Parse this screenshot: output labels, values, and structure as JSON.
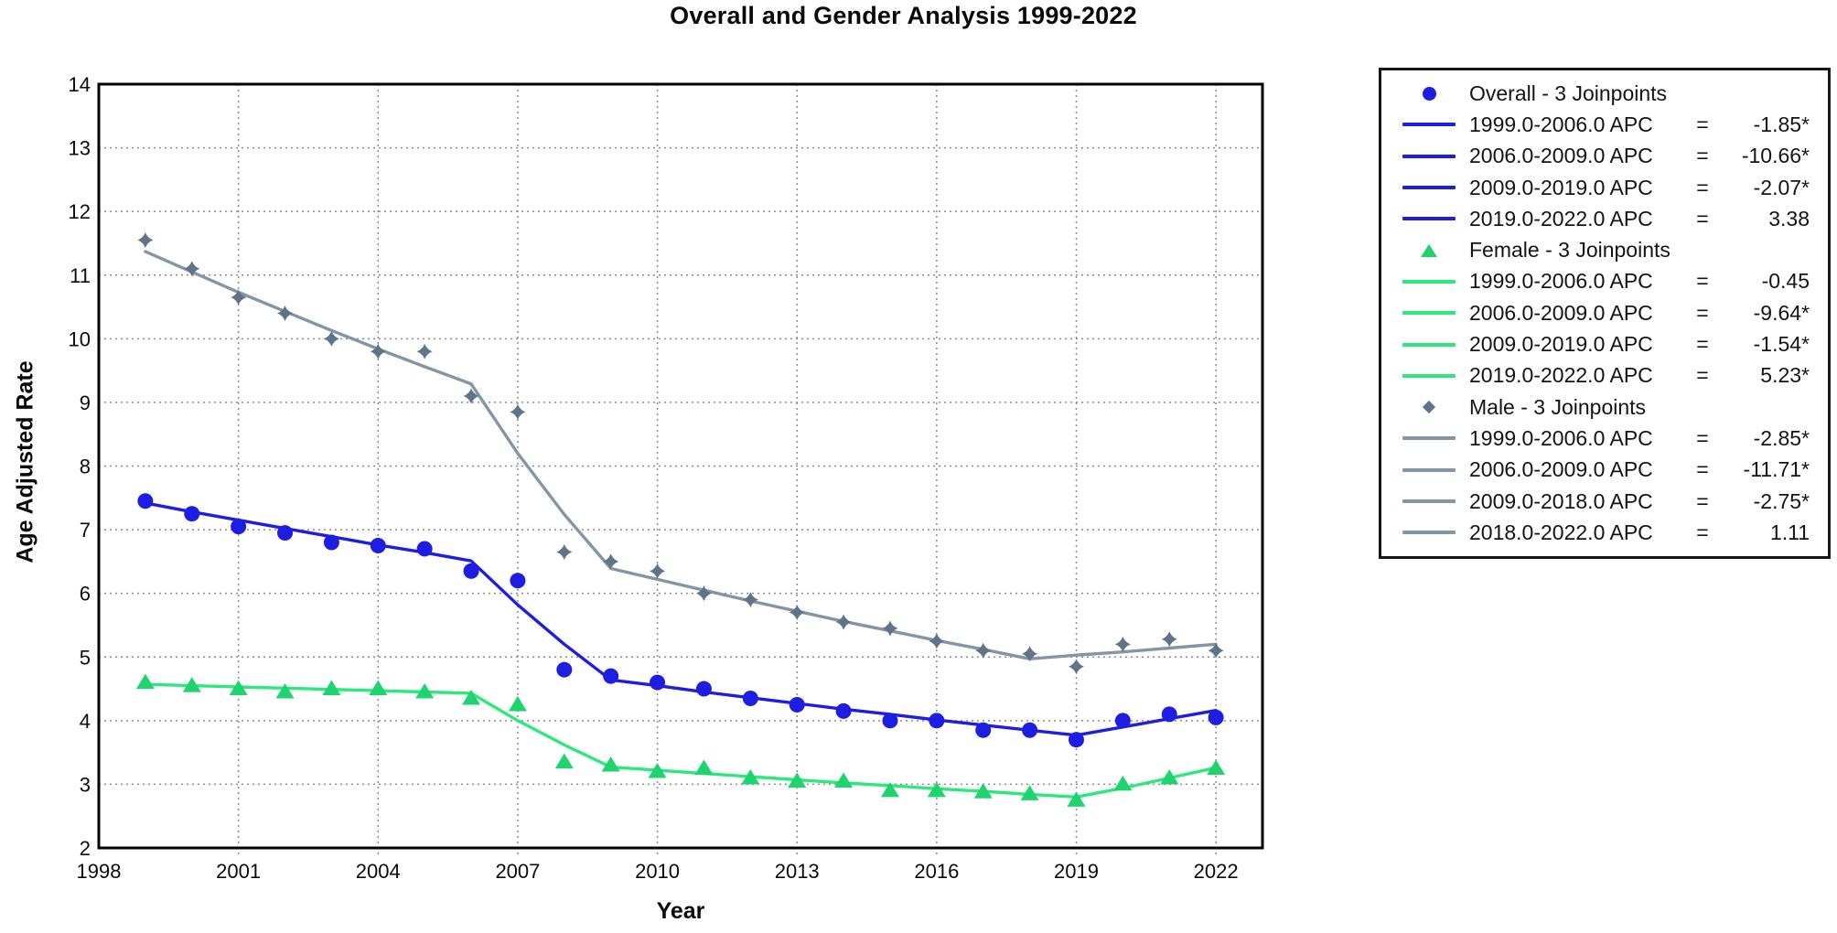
{
  "title": "Overall and Gender Analysis 1999-2022",
  "equals_sign": "=",
  "chart_data": {
    "type": "line",
    "title": "Overall and Gender Analysis 1999-2022",
    "xlabel": "Year",
    "ylabel": "Age Adjusted Rate",
    "xlim": [
      1998,
      2023
    ],
    "ylim": [
      2,
      14
    ],
    "x_ticks": [
      1998,
      2001,
      2004,
      2007,
      2010,
      2013,
      2016,
      2019,
      2022
    ],
    "y_ticks": [
      2,
      3,
      4,
      5,
      6,
      7,
      8,
      9,
      10,
      11,
      12,
      13,
      14
    ],
    "grid": true,
    "legend_position": "right",
    "years": [
      1999,
      2000,
      2001,
      2002,
      2003,
      2004,
      2005,
      2006,
      2007,
      2008,
      2009,
      2010,
      2011,
      2012,
      2013,
      2014,
      2015,
      2016,
      2017,
      2018,
      2019,
      2020,
      2021,
      2022
    ],
    "series": [
      {
        "name": "Overall - 3 Joinpoints",
        "marker": "circle",
        "color": "#1e1ee2",
        "line_color": "#1e1ee2",
        "observed": [
          7.45,
          7.25,
          7.05,
          6.95,
          6.8,
          6.75,
          6.7,
          6.35,
          6.2,
          4.8,
          4.7,
          4.6,
          4.5,
          4.35,
          4.25,
          4.15,
          4.0,
          4.0,
          3.85,
          3.85,
          3.7,
          4.0,
          4.1,
          4.05
        ],
        "fitted": [
          7.42,
          7.28,
          7.15,
          7.02,
          6.89,
          6.76,
          6.64,
          6.51,
          5.82,
          5.2,
          4.64,
          4.55,
          4.45,
          4.36,
          4.27,
          4.18,
          4.1,
          4.01,
          3.93,
          3.85,
          3.77,
          3.9,
          4.03,
          4.16
        ],
        "apc": [
          {
            "label": "1999.0-2006.0 APC",
            "value": "-1.85*"
          },
          {
            "label": "2006.0-2009.0 APC",
            "value": "-10.66*"
          },
          {
            "label": "2009.0-2019.0 APC",
            "value": "-2.07*"
          },
          {
            "label": "2019.0-2022.0 APC",
            "value": "3.38"
          }
        ]
      },
      {
        "name": "Female - 3 Joinpoints",
        "marker": "triangle",
        "color": "#1fd36f",
        "line_color": "#2de87d",
        "observed": [
          4.6,
          4.55,
          4.5,
          4.45,
          4.5,
          4.5,
          4.45,
          4.35,
          4.25,
          3.35,
          3.3,
          3.2,
          3.25,
          3.1,
          3.05,
          3.05,
          2.9,
          2.9,
          2.88,
          2.85,
          2.75,
          3.0,
          3.1,
          3.25
        ],
        "fitted": [
          4.57,
          4.55,
          4.53,
          4.51,
          4.49,
          4.47,
          4.45,
          4.43,
          4.0,
          3.62,
          3.27,
          3.22,
          3.17,
          3.12,
          3.07,
          3.02,
          2.98,
          2.93,
          2.89,
          2.84,
          2.8,
          2.94,
          3.1,
          3.26
        ],
        "apc": [
          {
            "label": "1999.0-2006.0 APC",
            "value": "-0.45"
          },
          {
            "label": "2006.0-2009.0 APC",
            "value": "-9.64*"
          },
          {
            "label": "2009.0-2019.0 APC",
            "value": "-1.54*"
          },
          {
            "label": "2019.0-2022.0 APC",
            "value": "5.23*"
          }
        ]
      },
      {
        "name": "Male - 3 Joinpoints",
        "marker": "diamond",
        "color": "#5f7487",
        "line_color": "#8496a5",
        "observed": [
          11.55,
          11.1,
          10.65,
          10.4,
          10.0,
          9.8,
          9.8,
          9.1,
          8.85,
          6.65,
          6.5,
          6.35,
          6.0,
          5.9,
          5.7,
          5.55,
          5.45,
          5.25,
          5.1,
          5.05,
          4.85,
          5.2,
          5.28,
          5.1
        ],
        "fitted": [
          11.37,
          11.05,
          10.73,
          10.43,
          10.13,
          9.84,
          9.56,
          9.29,
          8.2,
          7.24,
          6.39,
          6.22,
          6.05,
          5.88,
          5.72,
          5.56,
          5.41,
          5.26,
          5.12,
          4.97,
          5.03,
          5.08,
          5.14,
          5.2
        ],
        "apc": [
          {
            "label": "1999.0-2006.0 APC",
            "value": "-2.85*"
          },
          {
            "label": "2006.0-2009.0 APC",
            "value": "-11.71*"
          },
          {
            "label": "2009.0-2018.0 APC",
            "value": "-2.75*"
          },
          {
            "label": "2018.0-2022.0 APC",
            "value": "1.11"
          }
        ]
      }
    ]
  }
}
